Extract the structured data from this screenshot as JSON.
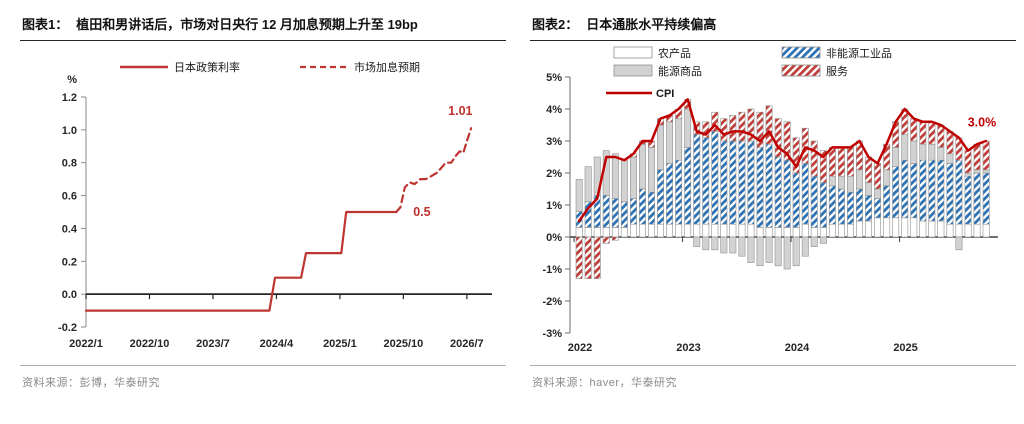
{
  "fig1": {
    "tag": "图表1：",
    "title": "植田和男讲话后，市场对日央行 12 月加息预期上升至 19bp",
    "source": "资料来源：彭博，华泰研究",
    "unit_label": "%",
    "legend": [
      {
        "label": "日本政策利率",
        "style": "solid"
      },
      {
        "label": "市场加息预期",
        "style": "dashed"
      }
    ],
    "line_color": "#bf3532"
  },
  "fig2": {
    "tag": "图表2：",
    "title": "日本通胀水平持续偏高",
    "source": "资料来源：haver，华泰研究",
    "legend": [
      {
        "label": "农产品",
        "swatch": "white"
      },
      {
        "label": "能源商品",
        "swatch": "gray"
      },
      {
        "label": "CPI",
        "swatch": "line"
      },
      {
        "label": "非能源工业品",
        "swatch": "blue-hatch"
      },
      {
        "label": "服务",
        "swatch": "red-hatch"
      }
    ],
    "colors": {
      "agri_fill": "#ffffff",
      "energy_fill": "#d2d2d2",
      "non_energy_stripe": "#2e74b5",
      "services_stripe": "#c0403c",
      "cpi_line": "#c00000",
      "bar_border": "#8f8f8f"
    }
  },
  "chart_data": [
    {
      "type": "line",
      "title": "植田和男讲话后，市场对日央行 12 月加息预期上升至 19bp",
      "ylabel": "%",
      "ylim": [
        -0.2,
        1.2
      ],
      "yticks": [
        1.2,
        1.0,
        0.8,
        0.6,
        0.4,
        0.2,
        0.0,
        -0.2
      ],
      "xtick_labels": [
        "2022/1",
        "2022/10",
        "2023/7",
        "2024/4",
        "2025/1",
        "2025/10",
        "2026/7"
      ],
      "xtick_months": [
        0,
        9,
        18,
        27,
        36,
        45,
        54
      ],
      "x_unit": "months since 2022/1",
      "grid": false,
      "legend_position": "top",
      "series": [
        {
          "name": "日本政策利率",
          "style": "solid",
          "points": [
            [
              0,
              -0.1
            ],
            [
              26,
              -0.1
            ],
            [
              26.8,
              0.1
            ],
            [
              30.5,
              0.1
            ],
            [
              31.2,
              0.25
            ],
            [
              36.2,
              0.25
            ],
            [
              36.9,
              0.5
            ],
            [
              44,
              0.5
            ]
          ]
        },
        {
          "name": "市场加息预期",
          "style": "dashed",
          "points": [
            [
              44,
              0.5
            ],
            [
              44.6,
              0.53
            ],
            [
              45.2,
              0.65
            ],
            [
              45.9,
              0.68
            ],
            [
              46.6,
              0.67
            ],
            [
              47.4,
              0.7
            ],
            [
              48.2,
              0.7
            ],
            [
              49.0,
              0.72
            ],
            [
              49.8,
              0.74
            ],
            [
              50.4,
              0.77
            ],
            [
              51.0,
              0.8
            ],
            [
              51.8,
              0.8
            ],
            [
              52.4,
              0.84
            ],
            [
              53.0,
              0.87
            ],
            [
              53.5,
              0.86
            ],
            [
              54.0,
              0.93
            ],
            [
              54.6,
              1.01
            ]
          ]
        }
      ],
      "annotations": [
        {
          "text": "0.5",
          "month": 45.4,
          "value": 0.5
        },
        {
          "text": "1.01",
          "month": 52.2,
          "value": 1.01
        }
      ]
    },
    {
      "type": "bar+line",
      "title": "日本通胀水平持续偏高",
      "stacked": true,
      "months": "2022/1 to 2025/10, monthly (46 bars)",
      "ylim": [
        -3,
        5
      ],
      "ytick_labels": [
        "5%",
        "4%",
        "3%",
        "2%",
        "1%",
        "0%",
        "-1%",
        "-2%",
        "-3%"
      ],
      "ytick_values": [
        5,
        4,
        3,
        2,
        1,
        0,
        -1,
        -2,
        -3
      ],
      "xtick_labels": [
        "2022",
        "2023",
        "2024",
        "2025"
      ],
      "xtick_months": [
        0,
        12,
        24,
        36
      ],
      "legend_position": "top",
      "series": [
        {
          "name": "农产品",
          "type": "bar",
          "values": [
            0.3,
            0.3,
            0.3,
            0.3,
            0.3,
            0.3,
            0.4,
            0.4,
            0.4,
            0.4,
            0.4,
            0.4,
            0.4,
            0.4,
            0.4,
            0.4,
            0.4,
            0.4,
            0.4,
            0.4,
            0.3,
            0.3,
            0.3,
            0.3,
            0.3,
            0.4,
            0.3,
            0.3,
            0.4,
            0.4,
            0.4,
            0.5,
            0.5,
            0.6,
            0.6,
            0.6,
            0.6,
            0.6,
            0.5,
            0.5,
            0.5,
            0.4,
            0.4,
            0.4,
            0.4,
            0.4
          ]
        },
        {
          "name": "非能源工业品",
          "type": "bar",
          "values": [
            0.5,
            0.8,
            1.0,
            1.0,
            0.9,
            0.8,
            0.8,
            1.1,
            1.0,
            1.7,
            1.9,
            2.0,
            2.4,
            2.8,
            2.7,
            2.9,
            2.6,
            2.6,
            2.6,
            2.6,
            2.5,
            2.6,
            2.2,
            2.1,
            1.7,
            1.9,
            1.6,
            1.4,
            1.2,
            1.1,
            1.0,
            1.0,
            0.8,
            0.6,
            1.0,
            1.6,
            1.8,
            1.7,
            1.9,
            1.9,
            1.9,
            1.9,
            2.0,
            1.5,
            1.6,
            1.6
          ]
        },
        {
          "name": "能源商品",
          "type": "bar",
          "values": [
            1.0,
            1.1,
            1.2,
            1.4,
            1.4,
            1.3,
            1.3,
            1.4,
            1.4,
            1.4,
            1.3,
            1.3,
            1.2,
            -0.3,
            -0.4,
            -0.4,
            -0.5,
            -0.5,
            -0.6,
            -0.8,
            -0.9,
            -0.8,
            -0.9,
            -1.0,
            -0.9,
            -0.6,
            -0.3,
            -0.2,
            0.3,
            0.4,
            0.5,
            0.6,
            0.4,
            0.3,
            0.5,
            0.6,
            0.8,
            0.7,
            0.5,
            0.5,
            0.4,
            0.3,
            -0.4,
            0.1,
            0.1,
            0.1
          ]
        },
        {
          "name": "服务",
          "type": "bar",
          "values": [
            -1.3,
            -1.3,
            -1.3,
            -0.2,
            -0.1,
            0.0,
            0.1,
            0.1,
            0.2,
            0.2,
            0.2,
            0.3,
            0.3,
            0.4,
            0.5,
            0.6,
            0.7,
            0.8,
            0.9,
            1.0,
            1.1,
            1.2,
            1.2,
            1.2,
            1.1,
            1.1,
            1.1,
            1.0,
            0.9,
            0.9,
            0.9,
            0.9,
            0.8,
            0.8,
            0.8,
            0.8,
            0.8,
            0.7,
            0.7,
            0.7,
            0.7,
            0.7,
            0.7,
            0.7,
            0.8,
            0.9
          ]
        },
        {
          "name": "CPI",
          "type": "line",
          "values": [
            0.5,
            0.9,
            1.2,
            2.5,
            2.5,
            2.4,
            2.6,
            3.0,
            3.0,
            3.7,
            3.8,
            4.0,
            4.3,
            3.3,
            3.2,
            3.5,
            3.2,
            3.3,
            3.3,
            3.2,
            3.0,
            3.3,
            2.8,
            2.6,
            2.2,
            2.8,
            2.7,
            2.5,
            2.8,
            2.8,
            2.8,
            3.0,
            2.5,
            2.3,
            2.9,
            3.6,
            4.0,
            3.7,
            3.6,
            3.6,
            3.5,
            3.3,
            3.1,
            2.7,
            2.9,
            3.0
          ]
        }
      ],
      "annotations": [
        {
          "text": "3.0%",
          "month": 42.3,
          "value": 3.45
        }
      ]
    }
  ]
}
